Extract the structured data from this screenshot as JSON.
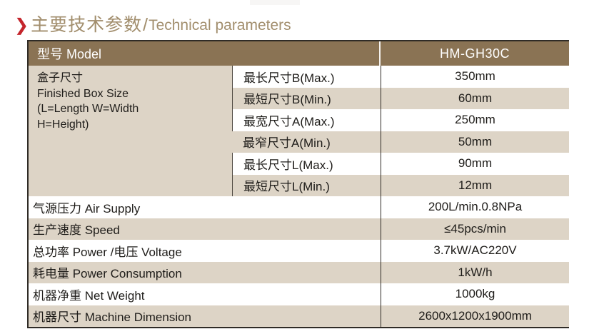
{
  "title": {
    "chevron": "❯",
    "zh": "主要技术参数",
    "slash": "/",
    "en": "Technical parameters"
  },
  "table": {
    "header": {
      "model_label": "型号 Model",
      "model_value": "HM-GH30C"
    },
    "box_size": {
      "label_lines": [
        "盒子尺寸",
        "Finished Box Size",
        "(L=Length  W=Width",
        "H=Height)"
      ],
      "rows": [
        {
          "label": "最长尺寸B(Max.)",
          "value": "350mm"
        },
        {
          "label": "最短尺寸B(Min.)",
          "value": "60mm"
        },
        {
          "label": "最宽尺寸A(Max.)",
          "value": "250mm"
        },
        {
          "label": "最窄尺寸A(Min.)",
          "value": "50mm"
        },
        {
          "label": "最长尺寸L(Max.)",
          "value": "90mm"
        },
        {
          "label": "最短尺寸L(Min.)",
          "value": "12mm"
        }
      ]
    },
    "rows": [
      {
        "label": "气源压力 Air Supply",
        "value": "200L/min.0.8NPa"
      },
      {
        "label": "生产速度 Speed",
        "value": "≤45pcs/min"
      },
      {
        "label": "总功率 Power /电压 Voltage",
        "value": "3.7kW/AC220V"
      },
      {
        "label": "耗电量 Power Consumption",
        "value": "1kW/h"
      },
      {
        "label": "机器净重 Net Weight",
        "value": "1000kg"
      },
      {
        "label": "机器尺寸 Machine Dimension",
        "value": "2600x1200x1900mm"
      }
    ]
  },
  "colors": {
    "header_bg": "#8a7354",
    "stripe_bg": "#ddd4c6",
    "title_color": "#a28e6d",
    "accent_red": "#c4252c",
    "border_dark": "#2f2b26",
    "text_dark": "#1e1c19"
  }
}
